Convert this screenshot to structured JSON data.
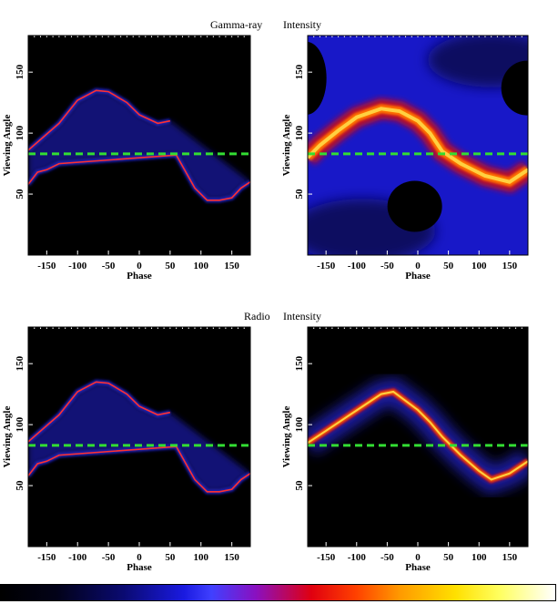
{
  "titles": {
    "gamma_left": "Gamma-ray",
    "gamma_right": "Intensity",
    "radio_left": "Radio",
    "radio_right": "Intensity"
  },
  "colors": {
    "reference_line": "#33dd33",
    "panel_background": "#000000",
    "caustic": "#ff3030",
    "glow": "#3030ff",
    "hot": "#ffd040"
  },
  "chart_data": [
    {
      "type": "heatmap",
      "panel": "gamma-ray-left",
      "xlabel": "Phase",
      "ylabel": "Viewing Angle",
      "xlim": [
        -180,
        180
      ],
      "ylim": [
        0,
        180
      ],
      "xticks": [
        "-150",
        "-100",
        "-50",
        "0",
        "50",
        "100",
        "150"
      ],
      "yticks": [
        "50",
        "100",
        "150"
      ],
      "reference_line_y": 83,
      "caustic_upper": {
        "x": [
          -180,
          -130,
          -100,
          -70,
          -50,
          -20,
          0,
          30,
          50
        ],
        "y": [
          86,
          108,
          127,
          135,
          134,
          125,
          115,
          108,
          110
        ]
      },
      "caustic_lower": {
        "x": [
          -180,
          -165,
          -150,
          -130,
          60,
          90,
          110,
          130,
          150,
          165,
          180
        ],
        "y": [
          58,
          68,
          70,
          75,
          82,
          55,
          45,
          45,
          47,
          55,
          60
        ]
      }
    },
    {
      "type": "heatmap",
      "panel": "gamma-ray-right",
      "xlabel": "Phase",
      "ylabel": "Viewing Angle",
      "xlim": [
        -180,
        180
      ],
      "ylim": [
        0,
        180
      ],
      "xticks": [
        "-150",
        "-100",
        "-50",
        "0",
        "50",
        "100",
        "150"
      ],
      "yticks": [
        "50",
        "100",
        "150"
      ],
      "reference_line_y": 83,
      "bright_band": {
        "x": [
          -180,
          -160,
          -130,
          -100,
          -60,
          -30,
          0,
          20,
          40,
          70,
          110,
          150,
          180
        ],
        "y": [
          80,
          90,
          102,
          113,
          120,
          118,
          110,
          100,
          85,
          75,
          65,
          60,
          70
        ]
      }
    },
    {
      "type": "heatmap",
      "panel": "radio-left",
      "xlabel": "Phase",
      "ylabel": "Viewing Angle",
      "xlim": [
        -180,
        180
      ],
      "ylim": [
        0,
        180
      ],
      "xticks": [
        "-150",
        "-100",
        "-50",
        "0",
        "50",
        "100",
        "150"
      ],
      "yticks": [
        "50",
        "100",
        "150"
      ],
      "reference_line_y": 83,
      "caustic_upper": {
        "x": [
          -180,
          -130,
          -100,
          -70,
          -50,
          -20,
          0,
          30,
          50
        ],
        "y": [
          86,
          108,
          127,
          135,
          134,
          125,
          115,
          108,
          110
        ]
      },
      "caustic_lower": {
        "x": [
          -180,
          -165,
          -150,
          -130,
          60,
          90,
          110,
          130,
          150,
          165,
          180
        ],
        "y": [
          58,
          68,
          70,
          75,
          82,
          55,
          45,
          45,
          47,
          55,
          60
        ]
      }
    },
    {
      "type": "heatmap",
      "panel": "radio-right",
      "xlabel": "Phase",
      "ylabel": "Viewing Angle",
      "xlim": [
        -180,
        180
      ],
      "ylim": [
        0,
        180
      ],
      "xticks": [
        "-150",
        "-100",
        "-50",
        "0",
        "50",
        "100",
        "150"
      ],
      "yticks": [
        "50",
        "100",
        "150"
      ],
      "reference_line_y": 83,
      "bright_band": {
        "x": [
          -180,
          -150,
          -120,
          -90,
          -60,
          -40,
          0,
          20,
          40,
          70,
          100,
          120,
          150,
          180
        ],
        "y": [
          85,
          95,
          105,
          115,
          125,
          127,
          112,
          102,
          90,
          75,
          62,
          55,
          60,
          70
        ]
      }
    }
  ]
}
